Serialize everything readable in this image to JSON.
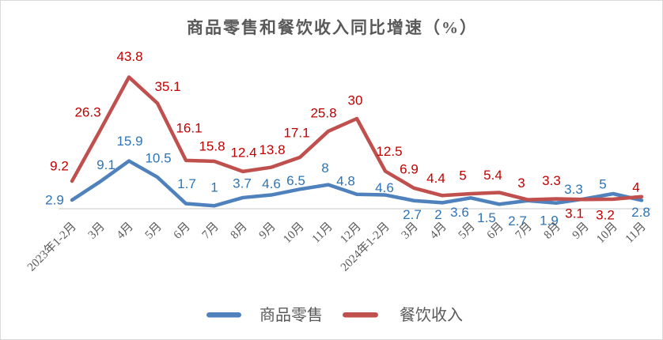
{
  "chart_data": {
    "type": "line",
    "title": "商品零售和餐饮收入同比增速（%）",
    "categories": [
      "2023年1-2月",
      "3月",
      "4月",
      "5月",
      "6月",
      "7月",
      "8月",
      "9月",
      "10月",
      "11月",
      "12月",
      "2024年1-2月",
      "3月",
      "4月",
      "5月",
      "6月",
      "7月",
      "8月",
      "9月",
      "10月",
      "11月"
    ],
    "series": [
      {
        "id": "retail",
        "name": "商品零售",
        "color": "#4F81BD",
        "label_color": "#2E74B5",
        "values": [
          2.9,
          9.1,
          15.9,
          10.5,
          1.7,
          1,
          3.7,
          4.6,
          6.5,
          8,
          4.8,
          4.6,
          2.7,
          2,
          3.6,
          1.5,
          2.7,
          1.9,
          3.3,
          5,
          2.8
        ],
        "label_dx": [
          -22,
          7,
          1,
          1,
          1,
          0,
          -1,
          0,
          -5,
          -4,
          -14,
          -1,
          -2,
          -5,
          -14,
          -16,
          -13,
          -9,
          -14,
          -13,
          -1
        ],
        "label_dy": [
          0,
          -21,
          -25,
          -24,
          -25,
          -23,
          -18,
          -14,
          -11,
          -21,
          -17,
          -9,
          18,
          15,
          18,
          17,
          26,
          22,
          -12,
          -12,
          15
        ]
      },
      {
        "id": "catering",
        "name": "餐饮收入",
        "color": "#C0504D",
        "label_color": "#C00000",
        "values": [
          9.2,
          26.3,
          43.8,
          35.1,
          16.1,
          15.8,
          12.4,
          13.8,
          17.1,
          25.8,
          30,
          12.5,
          6.9,
          4.4,
          5,
          5.4,
          3,
          3.3,
          3.1,
          3.2,
          4
        ],
        "label_dx": [
          -16,
          -16,
          1,
          13,
          4,
          -3,
          1,
          1,
          -4,
          -6,
          -2,
          5,
          -6,
          -8,
          -10,
          -8,
          -8,
          -6,
          -13,
          -10,
          -7
        ],
        "label_dy": [
          -19,
          -22,
          -26,
          -21,
          -41,
          -19,
          -24,
          -22,
          -31,
          -23,
          -23,
          -25,
          -24,
          -22,
          -23,
          -22,
          -21,
          -23,
          18,
          20,
          -12
        ]
      }
    ],
    "ylim": [
      0,
      50
    ],
    "grid": false,
    "legend_position": "bottom",
    "axis_line_color": "#D9D9D9",
    "text_color": "#595959"
  }
}
